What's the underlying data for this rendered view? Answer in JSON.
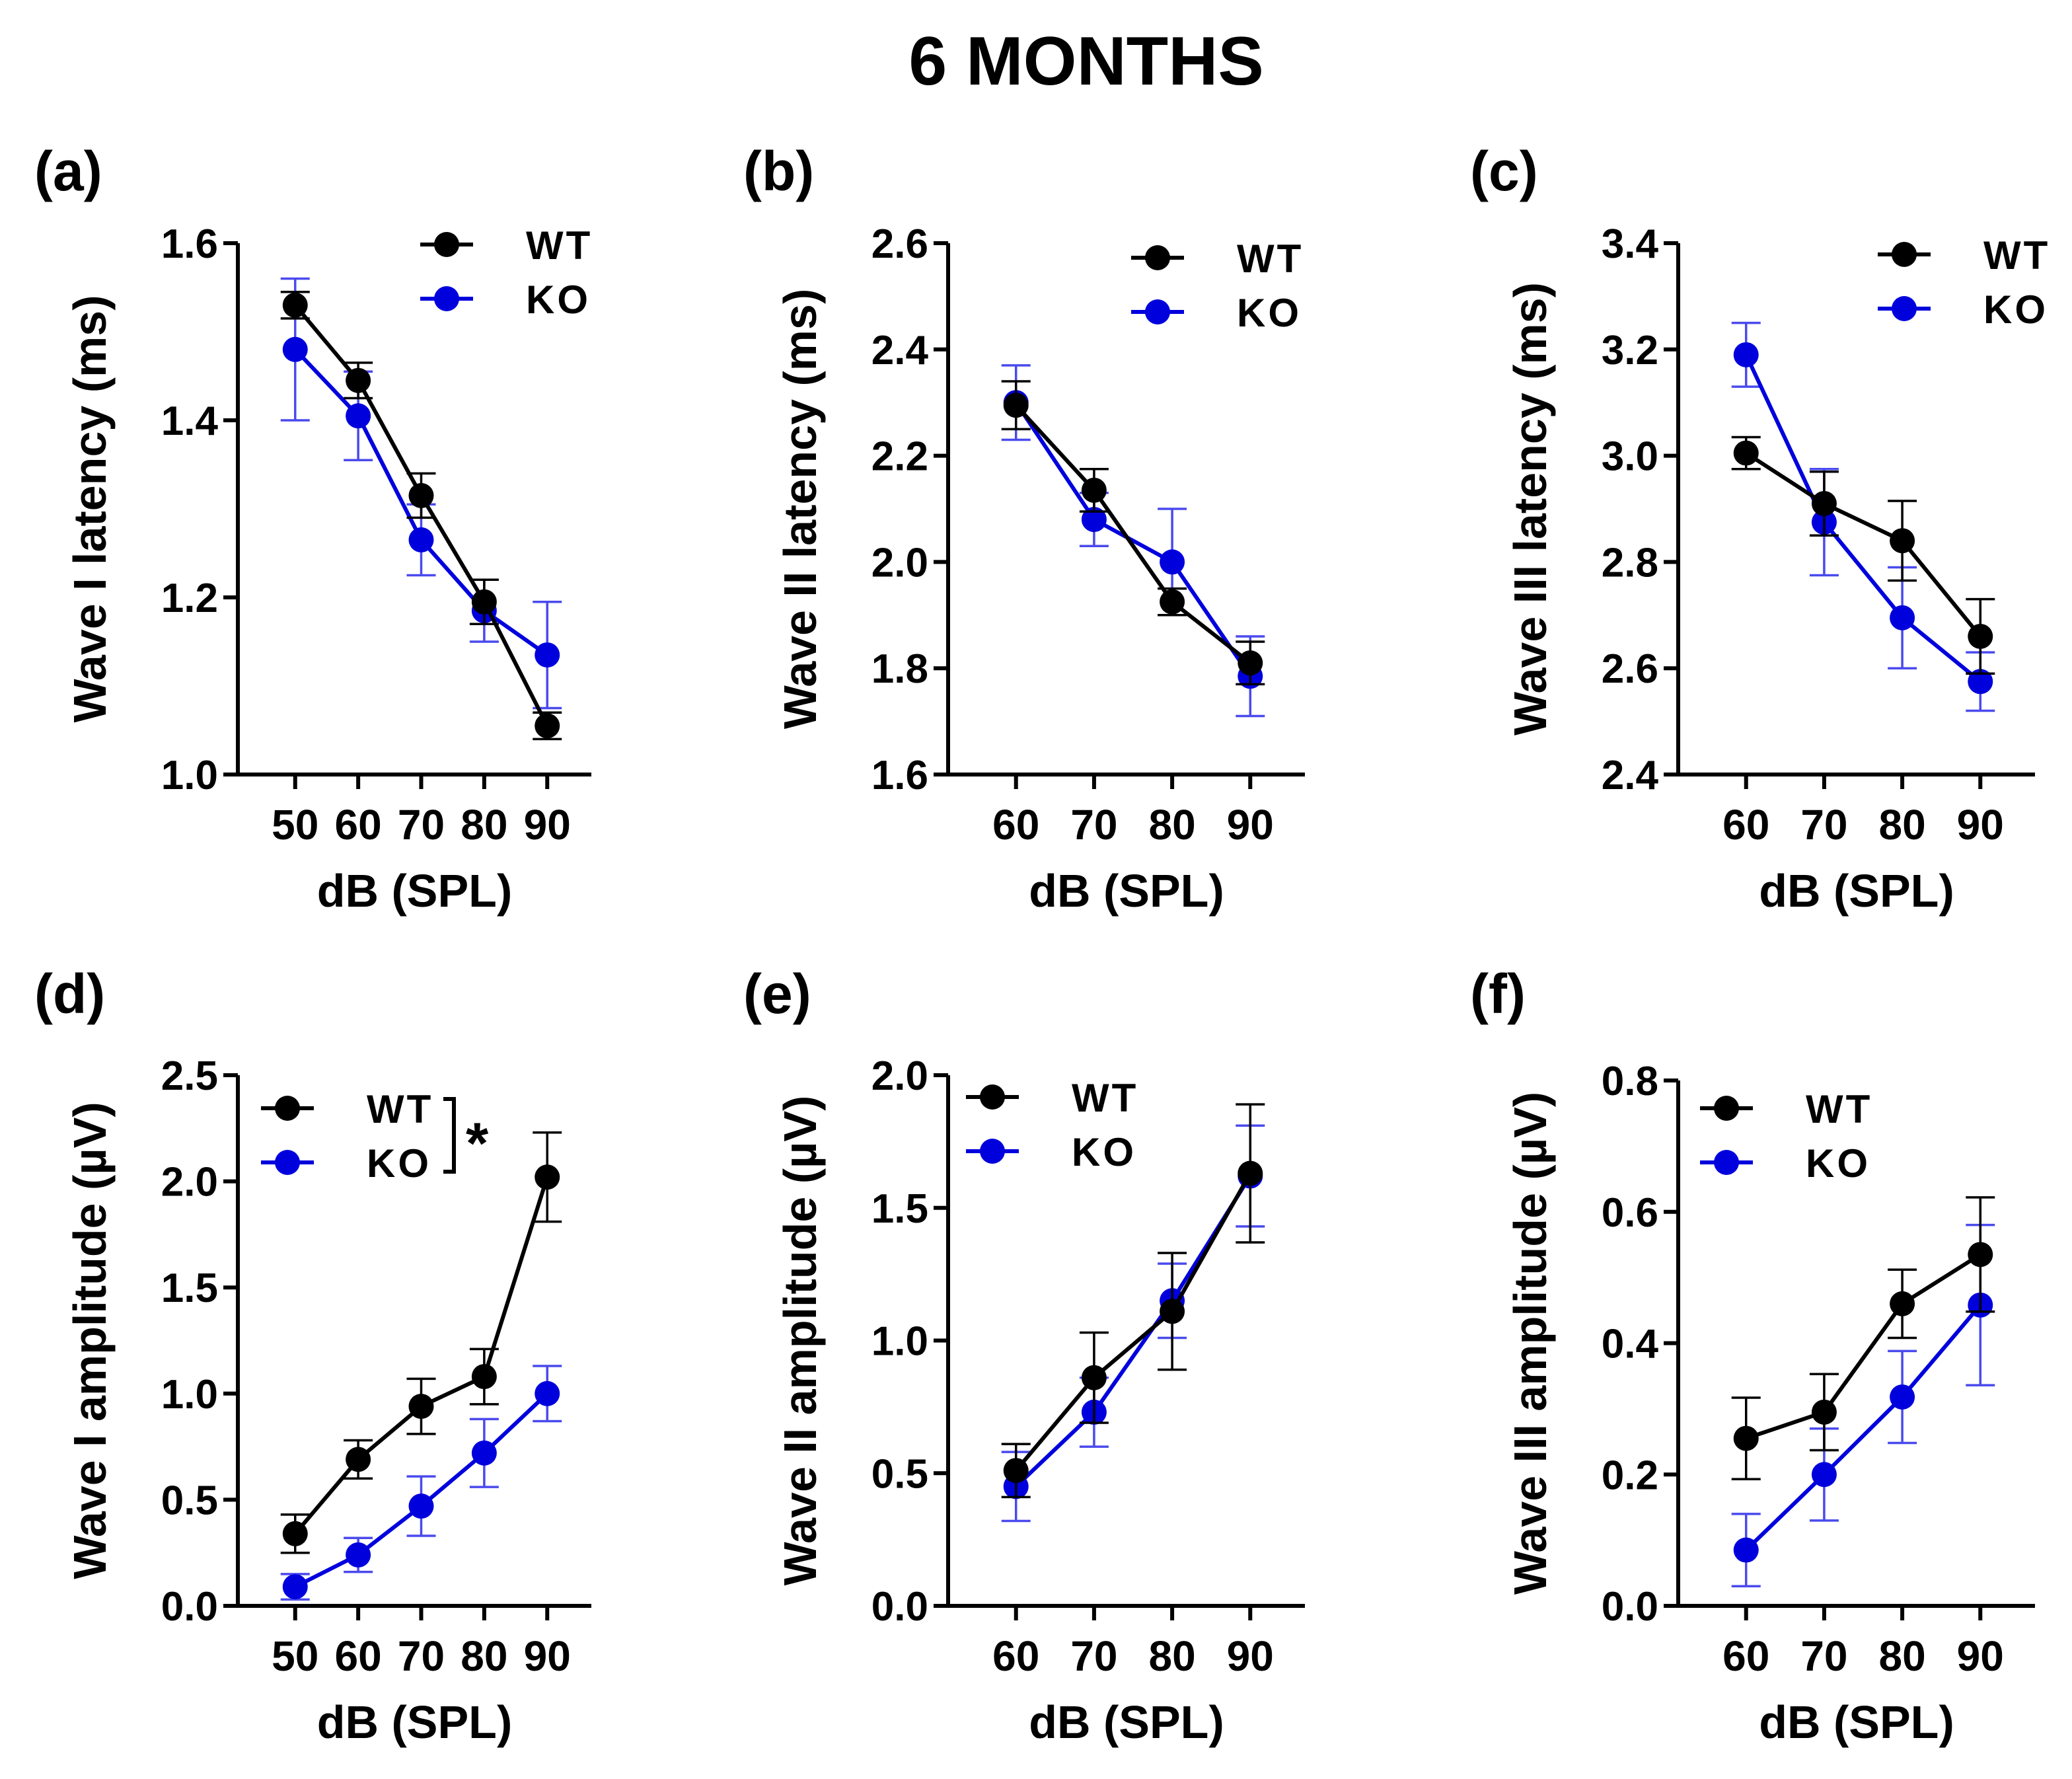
{
  "figure_title": "6 MONTHS",
  "colors": {
    "wt": "#000000",
    "ko": "#0000dd",
    "ko_err": "#4a4aee"
  },
  "chart_data": [
    {
      "panel": "(a)",
      "type": "line",
      "xlabel": "dB (SPL)",
      "ylabel": "Wave I latency (ms)",
      "x": [
        50,
        60,
        70,
        80,
        90
      ],
      "xlim": [
        43,
        97
      ],
      "ylim": [
        1.0,
        1.6
      ],
      "yticks": [
        "1.0",
        "1.2",
        "1.4",
        "1.6"
      ],
      "legend": "top-right",
      "significance": "",
      "series": [
        {
          "name": "WT",
          "values": [
            1.53,
            1.445,
            1.315,
            1.195,
            1.055
          ],
          "err": [
            0.015,
            0.02,
            0.025,
            0.025,
            0.015
          ]
        },
        {
          "name": "KO",
          "values": [
            1.48,
            1.405,
            1.265,
            1.185,
            1.135
          ],
          "err": [
            0.08,
            0.05,
            0.04,
            0.035,
            0.06
          ]
        }
      ]
    },
    {
      "panel": "(b)",
      "type": "line",
      "xlabel": "dB (SPL)",
      "ylabel": "Wave II latency (ms)",
      "x": [
        60,
        70,
        80,
        90
      ],
      "xlim": [
        53,
        97
      ],
      "ylim": [
        1.6,
        2.6
      ],
      "yticks": [
        "1.6",
        "1.8",
        "2.0",
        "2.2",
        "2.4",
        "2.6"
      ],
      "legend": "top-right",
      "significance": "",
      "series": [
        {
          "name": "WT",
          "values": [
            2.295,
            2.135,
            1.925,
            1.81
          ],
          "err": [
            0.045,
            0.04,
            0.025,
            0.04
          ]
        },
        {
          "name": "KO",
          "values": [
            2.3,
            2.08,
            2.0,
            1.785
          ],
          "err": [
            0.07,
            0.05,
            0.1,
            0.075
          ]
        }
      ]
    },
    {
      "panel": "(c)",
      "type": "line",
      "xlabel": "dB (SPL)",
      "ylabel": "Wave III latency (ms)",
      "x": [
        60,
        70,
        80,
        90
      ],
      "xlim": [
        53,
        97
      ],
      "ylim": [
        2.4,
        3.4
      ],
      "yticks": [
        "2.4",
        "2.6",
        "2.8",
        "3.0",
        "3.2",
        "3.4"
      ],
      "legend": "top-right",
      "significance": "",
      "series": [
        {
          "name": "WT",
          "values": [
            3.005,
            2.91,
            2.84,
            2.66
          ],
          "err": [
            0.03,
            0.06,
            0.075,
            0.07
          ]
        },
        {
          "name": "KO",
          "values": [
            3.19,
            2.875,
            2.695,
            2.575
          ],
          "err": [
            0.06,
            0.1,
            0.095,
            0.055
          ]
        }
      ]
    },
    {
      "panel": "(d)",
      "type": "line",
      "xlabel": "dB (SPL)",
      "ylabel": "Wave I amplitude (µV)",
      "x": [
        50,
        60,
        70,
        80,
        90
      ],
      "xlim": [
        43,
        97
      ],
      "ylim": [
        0.0,
        2.5
      ],
      "yticks": [
        "0.0",
        "0.5",
        "1.0",
        "1.5",
        "2.0",
        "2.5"
      ],
      "legend": "top-left",
      "significance": "*",
      "series": [
        {
          "name": "WT",
          "values": [
            0.34,
            0.69,
            0.94,
            1.08,
            2.02
          ],
          "err": [
            0.09,
            0.09,
            0.13,
            0.13,
            0.21
          ]
        },
        {
          "name": "KO",
          "values": [
            0.09,
            0.24,
            0.47,
            0.72,
            1.0
          ],
          "err": [
            0.06,
            0.08,
            0.14,
            0.16,
            0.13
          ]
        }
      ]
    },
    {
      "panel": "(e)",
      "type": "line",
      "xlabel": "dB (SPL)",
      "ylabel": "Wave II amplitude (µV)",
      "x": [
        60,
        70,
        80,
        90
      ],
      "xlim": [
        53,
        97
      ],
      "ylim": [
        0.0,
        2.0
      ],
      "yticks": [
        "0.0",
        "0.5",
        "1.0",
        "1.5",
        "2.0"
      ],
      "legend": "top-left",
      "significance": "",
      "series": [
        {
          "name": "WT",
          "values": [
            0.51,
            0.86,
            1.11,
            1.63
          ],
          "err": [
            0.1,
            0.17,
            0.22,
            0.26
          ]
        },
        {
          "name": "KO",
          "values": [
            0.45,
            0.73,
            1.15,
            1.62
          ],
          "err": [
            0.13,
            0.13,
            0.14,
            0.19
          ]
        }
      ]
    },
    {
      "panel": "(f)",
      "type": "line",
      "xlabel": "dB (SPL)",
      "ylabel": "Wave III amplitude (µV)",
      "x": [
        60,
        70,
        80,
        90
      ],
      "xlim": [
        53,
        97
      ],
      "ylim": [
        0.0,
        0.8
      ],
      "yticks": [
        "0.0",
        "0.2",
        "0.4",
        "0.6",
        "0.8"
      ],
      "legend": "top-left",
      "significance": "",
      "series": [
        {
          "name": "WT",
          "values": [
            0.255,
            0.295,
            0.46,
            0.535
          ],
          "err": [
            0.062,
            0.058,
            0.052,
            0.087
          ]
        },
        {
          "name": "KO",
          "values": [
            0.085,
            0.2,
            0.318,
            0.458
          ],
          "err": [
            0.055,
            0.07,
            0.07,
            0.122
          ]
        }
      ]
    }
  ]
}
